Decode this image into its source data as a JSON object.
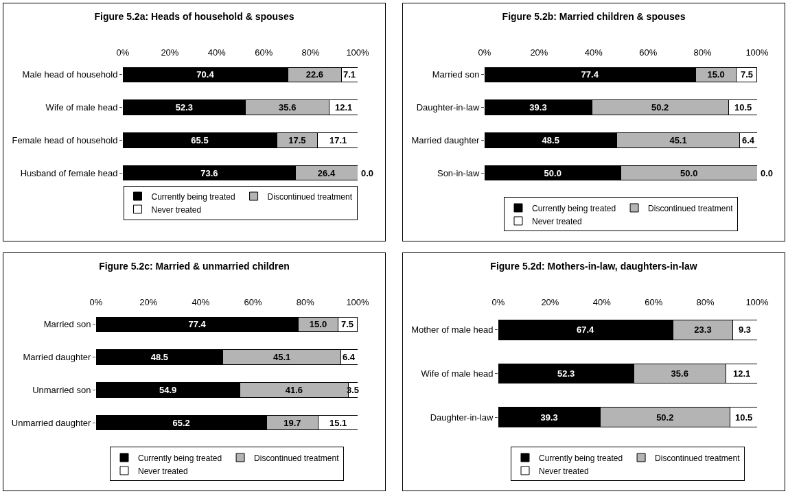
{
  "chart_data": [
    {
      "type": "bar",
      "orientation": "horizontal",
      "stacked": true,
      "title": "Figure 5.2a: Heads of household & spouses",
      "categories": [
        "Male head of household",
        "Wife of male head",
        "Female head of household",
        "Husband of female head"
      ],
      "series": [
        {
          "name": "Currently being treated",
          "color": "#000000",
          "values": [
            70.4,
            52.3,
            65.5,
            73.6
          ],
          "value_labels": [
            "70.4",
            "52.3",
            "65.5",
            "73.6"
          ]
        },
        {
          "name": "Discontinued treatment",
          "color": "#b4b4b4",
          "values": [
            22.6,
            35.6,
            17.5,
            26.4
          ],
          "value_labels": [
            "22.6",
            "35.6",
            "17.5",
            "26.4"
          ]
        },
        {
          "name": "Never treated",
          "color": "#ffffff",
          "values": [
            7.1,
            12.1,
            17.1,
            0.0
          ],
          "value_labels": [
            "7.1",
            "12.1",
            "17.1",
            "0.0"
          ]
        }
      ],
      "xlim": [
        0,
        100
      ],
      "xticks": [
        {
          "value": 0,
          "label": "0%"
        },
        {
          "value": 20,
          "label": "20%"
        },
        {
          "value": 40,
          "label": "40%"
        },
        {
          "value": 60,
          "label": "60%"
        },
        {
          "value": 80,
          "label": "80%"
        },
        {
          "value": 100,
          "label": "100%"
        }
      ],
      "legend": "bottom",
      "grid": false
    },
    {
      "type": "bar",
      "orientation": "horizontal",
      "stacked": true,
      "title": "Figure 5.2b: Married children & spouses",
      "categories": [
        "Married son",
        "Daughter-in-law",
        "Married daughter",
        "Son-in-law"
      ],
      "series": [
        {
          "name": "Currently being treated",
          "color": "#000000",
          "values": [
            77.4,
            39.3,
            48.5,
            50.0
          ],
          "value_labels": [
            "77.4",
            "39.3",
            "48.5",
            "50.0"
          ]
        },
        {
          "name": "Discontinued treatment",
          "color": "#b4b4b4",
          "values": [
            15.0,
            50.2,
            45.1,
            50.0
          ],
          "value_labels": [
            "15.0",
            "50.2",
            "45.1",
            "50.0"
          ]
        },
        {
          "name": "Never treated",
          "color": "#ffffff",
          "values": [
            7.5,
            10.5,
            6.4,
            0.0
          ],
          "value_labels": [
            "7.5",
            "10.5",
            "6.4",
            "0.0"
          ]
        }
      ],
      "xlim": [
        0,
        100
      ],
      "xticks": [
        {
          "value": 0,
          "label": "0%"
        },
        {
          "value": 20,
          "label": "20%"
        },
        {
          "value": 40,
          "label": "40%"
        },
        {
          "value": 60,
          "label": "60%"
        },
        {
          "value": 80,
          "label": "80%"
        },
        {
          "value": 100,
          "label": "100%"
        }
      ],
      "legend": "bottom",
      "grid": false
    },
    {
      "type": "bar",
      "orientation": "horizontal",
      "stacked": true,
      "title": "Figure 5.2c: Married & unmarried children",
      "categories": [
        "Married son",
        "Married daughter",
        "Unmarried son",
        "Unmarried daughter"
      ],
      "series": [
        {
          "name": "Currently being treated",
          "color": "#000000",
          "values": [
            77.4,
            48.5,
            54.9,
            65.2
          ],
          "value_labels": [
            "77.4",
            "48.5",
            "54.9",
            "65.2"
          ]
        },
        {
          "name": "Discontinued treatment",
          "color": "#b4b4b4",
          "values": [
            15.0,
            45.1,
            41.6,
            19.7
          ],
          "value_labels": [
            "15.0",
            "45.1",
            "41.6",
            "19.7"
          ]
        },
        {
          "name": "Never treated",
          "color": "#ffffff",
          "values": [
            7.5,
            6.4,
            3.5,
            15.1
          ],
          "value_labels": [
            "7.5",
            "6.4",
            "3.5",
            "15.1"
          ]
        }
      ],
      "xlim": [
        0,
        100
      ],
      "xticks": [
        {
          "value": 0,
          "label": "0%"
        },
        {
          "value": 20,
          "label": "20%"
        },
        {
          "value": 40,
          "label": "40%"
        },
        {
          "value": 60,
          "label": "60%"
        },
        {
          "value": 80,
          "label": "80%"
        },
        {
          "value": 100,
          "label": "100%"
        }
      ],
      "legend": "bottom",
      "grid": false
    },
    {
      "type": "bar",
      "orientation": "horizontal",
      "stacked": true,
      "title": "Figure 5.2d: Mothers-in-law, daughters-in-law",
      "categories": [
        "Mother of male head",
        "Wife of male head",
        "Daughter-in-law"
      ],
      "series": [
        {
          "name": "Currently being treated",
          "color": "#000000",
          "values": [
            67.4,
            52.3,
            39.3
          ],
          "value_labels": [
            "67.4",
            "52.3",
            "39.3"
          ]
        },
        {
          "name": "Discontinued treatment",
          "color": "#b4b4b4",
          "values": [
            23.3,
            35.6,
            50.2
          ],
          "value_labels": [
            "23.3",
            "35.6",
            "50.2"
          ]
        },
        {
          "name": "Never treated",
          "color": "#ffffff",
          "values": [
            9.3,
            12.1,
            10.5
          ],
          "value_labels": [
            "9.3",
            "12.1",
            "10.5"
          ]
        }
      ],
      "xlim": [
        0,
        100
      ],
      "xticks": [
        {
          "value": 0,
          "label": "0%"
        },
        {
          "value": 20,
          "label": "20%"
        },
        {
          "value": 40,
          "label": "40%"
        },
        {
          "value": 60,
          "label": "60%"
        },
        {
          "value": 80,
          "label": "80%"
        },
        {
          "value": 100,
          "label": "100%"
        }
      ],
      "legend": "bottom",
      "grid": false
    }
  ]
}
